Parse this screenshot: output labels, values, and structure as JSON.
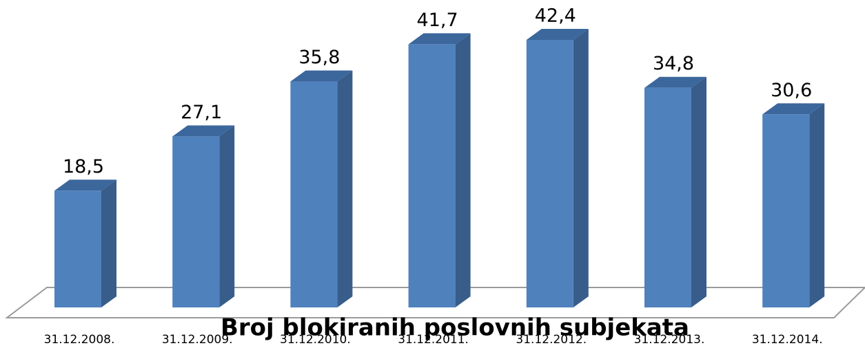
{
  "chart_data": {
    "type": "bar",
    "title": "Broj blokiranih poslovnih subjekata",
    "categories": [
      "31.12.2008.",
      "31.12.2009.",
      "31.12.2010.",
      "31.12.2011.",
      "31.12.2012.",
      "31.12.2013.",
      "31.12.2014."
    ],
    "values": [
      18.5,
      27.1,
      35.8,
      41.7,
      42.4,
      34.8,
      30.6
    ],
    "value_labels": [
      "18,5",
      "27,1",
      "35,8",
      "41,7",
      "42,4",
      "34,8",
      "30,6"
    ],
    "color": "#4f81bd"
  }
}
